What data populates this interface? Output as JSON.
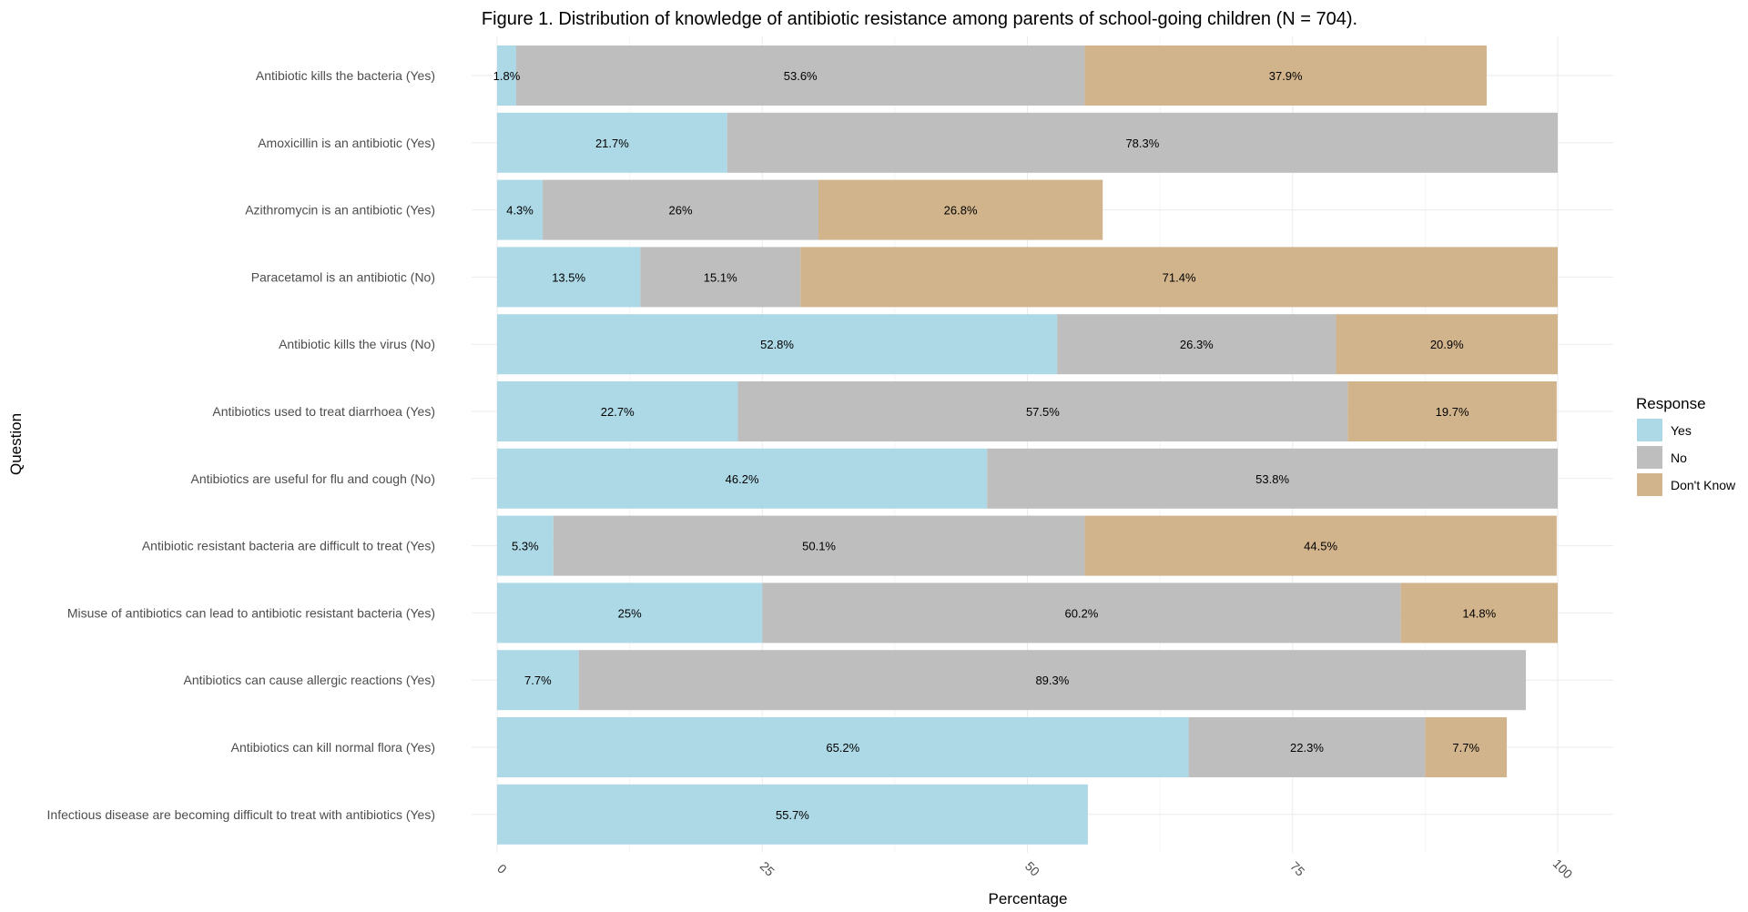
{
  "chart_data": {
    "type": "bar",
    "orientation": "horizontal",
    "stacked": true,
    "title": "Figure 1. Distribution of knowledge of antibiotic resistance among parents of school-going children (N = 704).",
    "xlabel": "Percentage",
    "ylabel": "Question",
    "xlim": [
      0,
      100
    ],
    "xticks": [
      0,
      25,
      50,
      75,
      100
    ],
    "xtick_labels": [
      "0",
      "25",
      "50",
      "75",
      "100"
    ],
    "grid": true,
    "legend": {
      "title": "Response",
      "position": "right",
      "entries": [
        "Yes",
        "No",
        "Don't Know"
      ]
    },
    "categories": [
      "Antibiotic kills the bacteria (Yes)",
      "Amoxicillin is an antibiotic (Yes)",
      "Azithromycin is an antibiotic (Yes)",
      "Paracetamol is an antibiotic (No)",
      "Antibiotic kills the virus (No)",
      "Antibiotics used to treat diarrhoea (Yes)",
      "Antibiotics are useful for flu and cough (No)",
      "Antibiotic resistant bacteria are difficult to treat (Yes)",
      "Misuse of antibiotics can lead to antibiotic resistant bacteria (Yes)",
      "Antibiotics can cause allergic reactions (Yes)",
      "Antibiotics can kill normal flora (Yes)",
      "Infectious disease are becoming difficult to treat with antibiotics (Yes)"
    ],
    "series": [
      {
        "name": "Yes",
        "color": "#add8e6",
        "values": [
          1.8,
          21.7,
          4.3,
          13.5,
          52.8,
          22.7,
          46.2,
          5.3,
          25,
          7.7,
          65.2,
          55.7
        ],
        "labels": [
          "1.8%",
          "21.7%",
          "4.3%",
          "13.5%",
          "52.8%",
          "22.7%",
          "46.2%",
          "5.3%",
          "25%",
          "7.7%",
          "65.2%",
          "55.7%"
        ]
      },
      {
        "name": "No",
        "color": "#bebebe",
        "values": [
          53.6,
          78.3,
          26,
          15.1,
          26.3,
          57.5,
          53.8,
          50.1,
          60.2,
          89.3,
          22.3,
          null
        ],
        "labels": [
          "53.6%",
          "78.3%",
          "26%",
          "15.1%",
          "26.3%",
          "57.5%",
          "53.8%",
          "50.1%",
          "60.2%",
          "89.3%",
          "22.3%",
          null
        ]
      },
      {
        "name": "Don't Know",
        "color": "#d2b48c",
        "values": [
          37.9,
          null,
          26.8,
          71.4,
          20.9,
          19.7,
          null,
          44.5,
          14.8,
          null,
          7.7,
          null
        ],
        "labels": [
          "37.9%",
          null,
          "26.8%",
          "71.4%",
          "20.9%",
          "19.7%",
          null,
          "44.5%",
          "14.8%",
          null,
          "7.7%",
          null
        ]
      }
    ]
  }
}
